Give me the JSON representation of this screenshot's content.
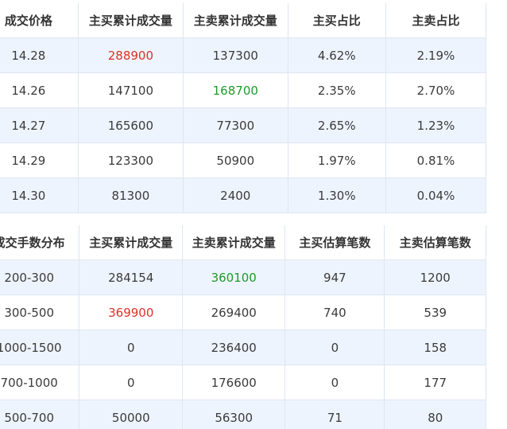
{
  "price_table": {
    "headers": [
      "成交价格",
      "主买累计成交量",
      "主卖累计成交量",
      "主买占比",
      "主卖占比"
    ],
    "rows": [
      {
        "price": "14.28",
        "buy_vol": "288900",
        "sell_vol": "137300",
        "buy_pct": "4.62%",
        "sell_pct": "2.19%"
      },
      {
        "price": "14.26",
        "buy_vol": "147100",
        "sell_vol": "168700",
        "buy_pct": "2.35%",
        "sell_pct": "2.70%"
      },
      {
        "price": "14.27",
        "buy_vol": "165600",
        "sell_vol": "77300",
        "buy_pct": "2.65%",
        "sell_pct": "1.23%"
      },
      {
        "price": "14.29",
        "buy_vol": "123300",
        "sell_vol": "50900",
        "buy_pct": "1.97%",
        "sell_pct": "0.81%"
      },
      {
        "price": "14.30",
        "buy_vol": "81300",
        "sell_vol": "2400",
        "buy_pct": "1.30%",
        "sell_pct": "0.04%"
      }
    ]
  },
  "lot_table": {
    "headers": [
      "成交手数分布",
      "主买累计成交量",
      "主卖累计成交量",
      "主买估算笔数",
      "主卖估算笔数"
    ],
    "rows": [
      {
        "range": "200-300",
        "buy_vol": "284154",
        "sell_vol": "360100",
        "buy_count": "947",
        "sell_count": "1200"
      },
      {
        "range": "300-500",
        "buy_vol": "369900",
        "sell_vol": "269400",
        "buy_count": "740",
        "sell_count": "539"
      },
      {
        "range": "1000-1500",
        "buy_vol": "0",
        "sell_vol": "236400",
        "buy_count": "0",
        "sell_count": "158"
      },
      {
        "range": "700-1000",
        "buy_vol": "0",
        "sell_vol": "176600",
        "buy_count": "0",
        "sell_count": "177"
      },
      {
        "range": "500-700",
        "buy_vol": "50000",
        "sell_vol": "56300",
        "buy_count": "71",
        "sell_count": "80"
      }
    ]
  },
  "colors": {
    "highlight_max_buy": "#e0312a",
    "highlight_max_sell": "#1f9a2c",
    "row_stripe": "#eef4fd",
    "border": "#dde6f2"
  }
}
